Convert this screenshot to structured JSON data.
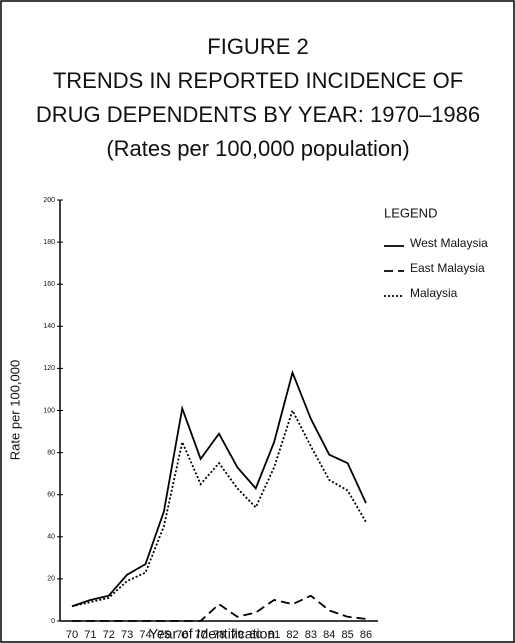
{
  "chart_data": {
    "type": "line",
    "title": [
      "FIGURE 2",
      "TRENDS IN REPORTED INCIDENCE OF",
      "DRUG DEPENDENTS BY YEAR: 1970–1986",
      "(Rates per 100,000 population)"
    ],
    "x_label": "Year of Identification",
    "y_label": "Rate per 100,000",
    "legend_title": "LEGEND",
    "categories": [
      "70",
      "71",
      "72",
      "73",
      "74",
      "75",
      "76",
      "77",
      "78",
      "79",
      "80",
      "81",
      "82",
      "83",
      "84",
      "85",
      "86"
    ],
    "series": [
      {
        "name": "West Malaysia",
        "color": "#000000",
        "style": "solid",
        "values": [
          7,
          10,
          12,
          22,
          27,
          52,
          101,
          77,
          89,
          73,
          63,
          85,
          118,
          96,
          79,
          75,
          56
        ]
      },
      {
        "name": "East Malaysia",
        "color": "#000000",
        "style": "dashed",
        "values": [
          0,
          0,
          0,
          0,
          0,
          0,
          0,
          0,
          8,
          2,
          4,
          10,
          8,
          12,
          5,
          2,
          1
        ]
      },
      {
        "name": "Malaysia",
        "color": "#000000",
        "style": "dotted",
        "values": [
          7,
          9,
          11,
          19,
          23,
          45,
          85,
          65,
          75,
          63,
          54,
          73,
          100,
          83,
          67,
          62,
          47
        ]
      }
    ],
    "ylim": [
      0,
      200
    ],
    "yticks": [
      0,
      20,
      40,
      60,
      80,
      100,
      120,
      140,
      160,
      180,
      200
    ],
    "grid": false,
    "legend": "right"
  }
}
